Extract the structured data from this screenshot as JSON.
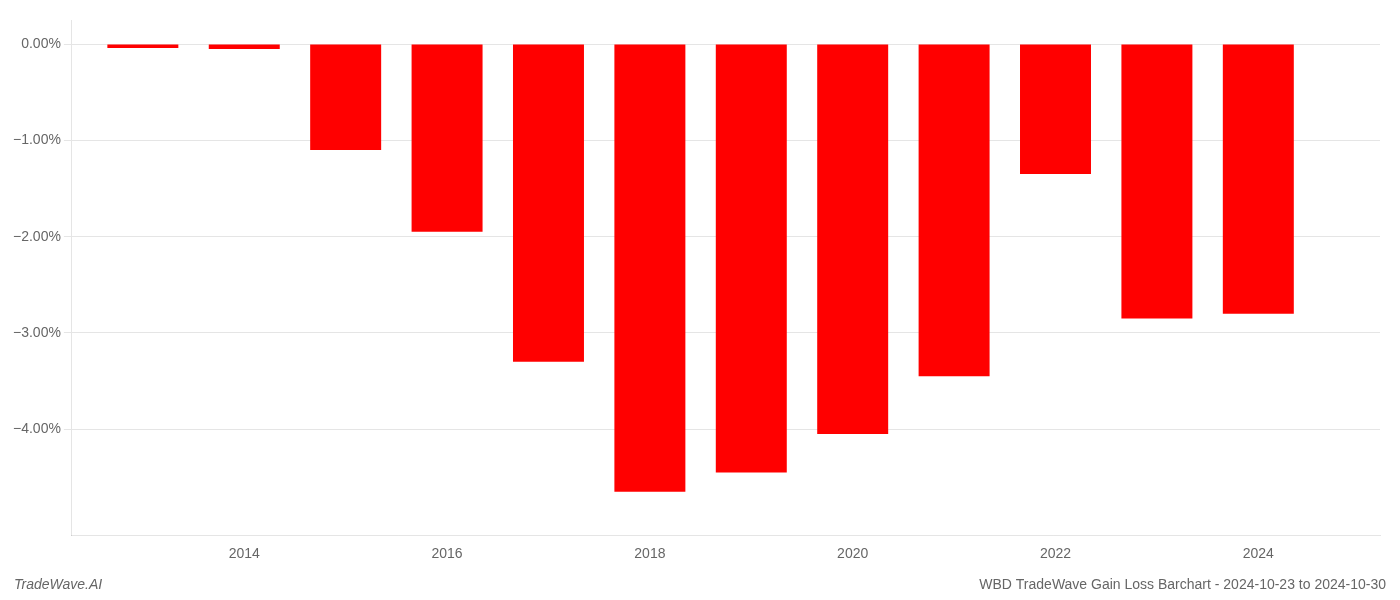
{
  "chart_data": {
    "type": "bar",
    "x": [
      2013,
      2014,
      2015,
      2016,
      2017,
      2018,
      2019,
      2020,
      2021,
      2022,
      2023,
      2024
    ],
    "values": [
      -0.04,
      -0.05,
      -1.1,
      -1.95,
      -3.3,
      -4.65,
      -4.45,
      -4.05,
      -3.45,
      -1.35,
      -2.85,
      -2.8
    ],
    "color": "#ff0000",
    "xlim": [
      2012.3,
      2025.2
    ],
    "xticks": [
      2014,
      2016,
      2018,
      2020,
      2022,
      2024
    ],
    "ylim": [
      -5.1,
      0.25
    ],
    "yticks": [
      {
        "value": 0.0,
        "label": "0.00%"
      },
      {
        "value": -1.0,
        "label": "−1.00%"
      },
      {
        "value": -2.0,
        "label": "−2.00%"
      },
      {
        "value": -3.0,
        "label": "−3.00%"
      },
      {
        "value": -4.0,
        "label": "−4.00%"
      }
    ],
    "grid": true,
    "annotations": [
      "TradeWave.AI",
      "WBD TradeWave Gain Loss Barchart - 2024-10-23 to 2024-10-30"
    ]
  }
}
